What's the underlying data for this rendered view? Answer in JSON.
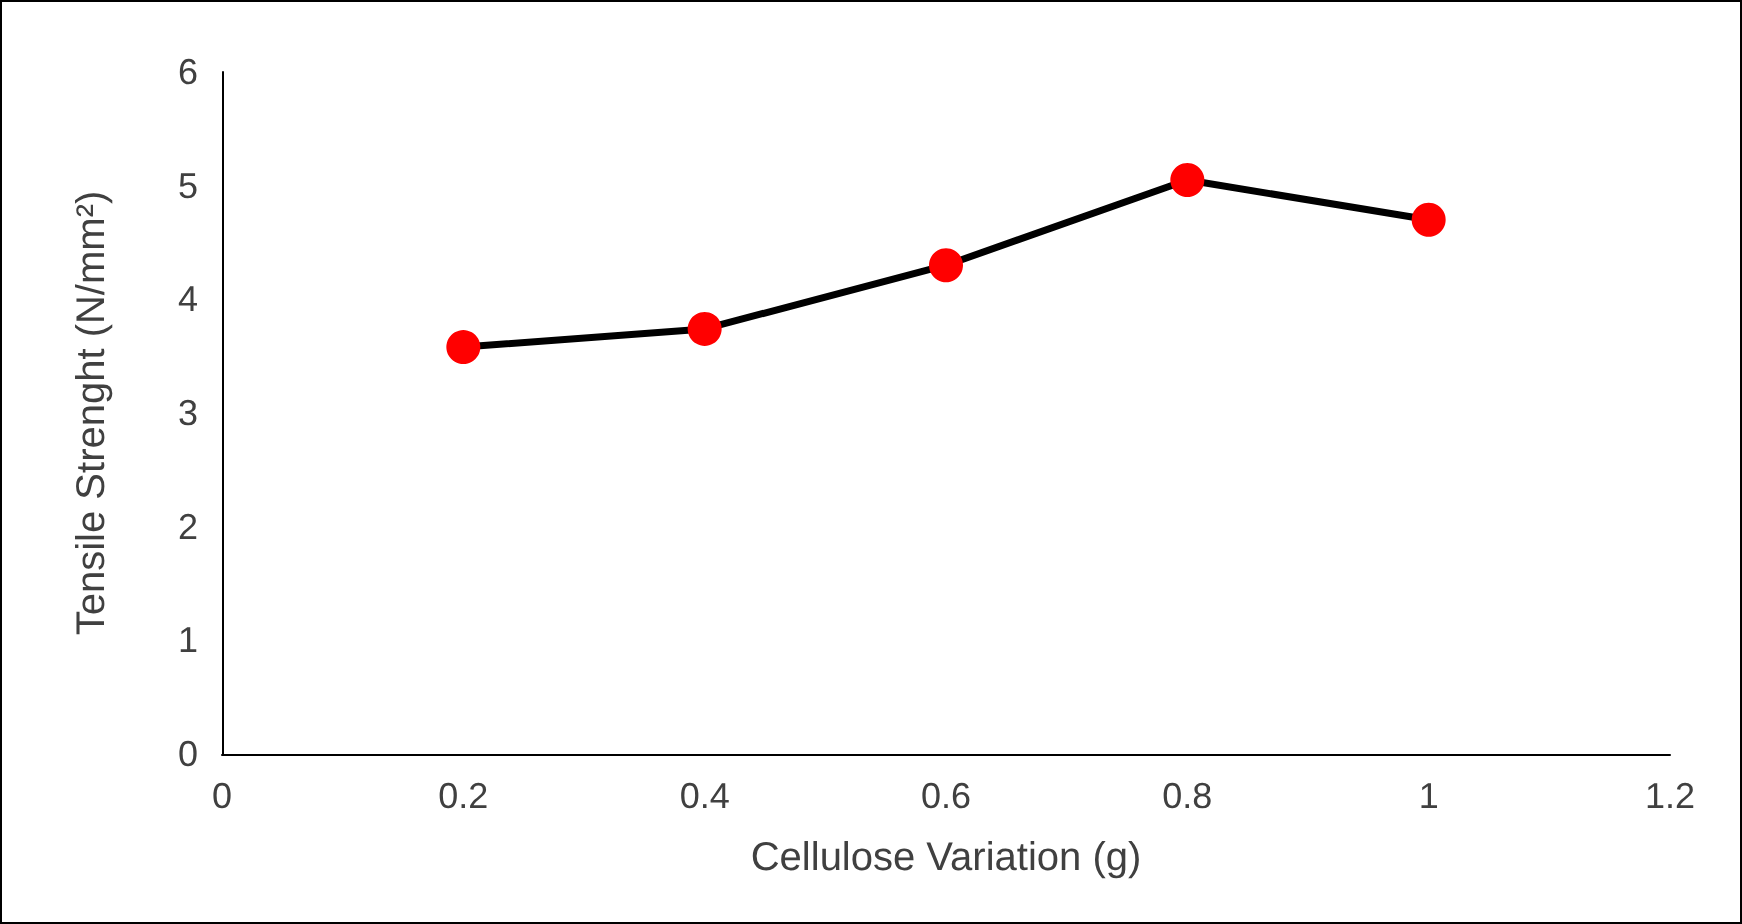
{
  "chart_data": {
    "type": "line",
    "xlabel": "Cellulose Variation (g)",
    "ylabel": "Tensile Strenght (N/mm²)",
    "x": [
      0.2,
      0.4,
      0.6,
      0.8,
      1
    ],
    "series": [
      {
        "color": "#ff0000",
        "values": [
          3.58,
          3.74,
          4.3,
          5.05,
          4.7
        ]
      }
    ],
    "xlim": [
      0,
      1.2
    ],
    "xticks": [
      0,
      0.2,
      0.4,
      0.6,
      0.8,
      1,
      1.2
    ],
    "ylim": [
      0,
      6
    ],
    "yticks": [
      0,
      1,
      2,
      3,
      4,
      5,
      6
    ],
    "grid": false,
    "marker": "circle",
    "line_style": "solid"
  }
}
